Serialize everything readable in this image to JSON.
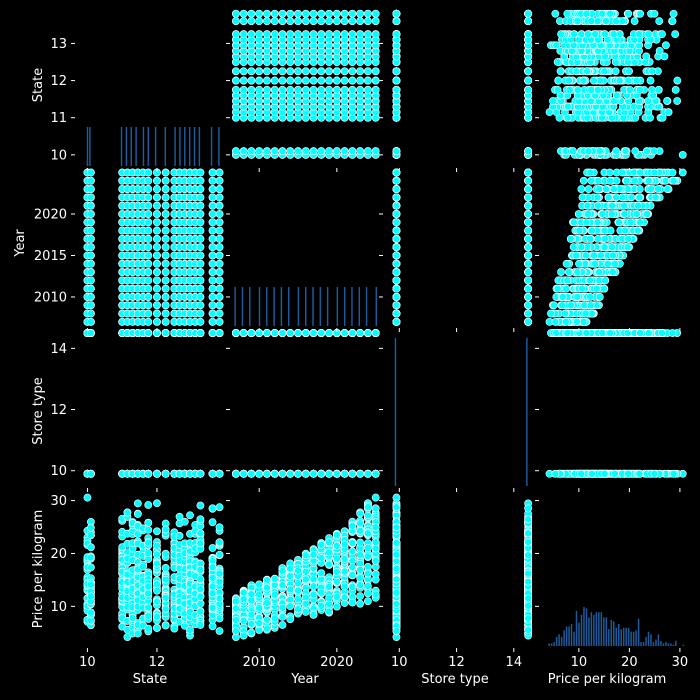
{
  "chart_data": {
    "type": "scatter",
    "kind": "pairplot",
    "variables": [
      "State",
      "Year",
      "Store type",
      "Price per kilogram"
    ],
    "axes": {
      "State": {
        "range": [
          9.7,
          13.9
        ],
        "ticks": [
          10,
          11,
          12,
          13
        ],
        "x_ticks": [
          10,
          12
        ]
      },
      "Year": {
        "range": [
          2006.5,
          2025.3
        ],
        "ticks": [
          2010,
          2015,
          2020
        ],
        "x_ticks": [
          2010,
          2020
        ]
      },
      "Store type": {
        "range": [
          9.5,
          14.6
        ],
        "ticks": [
          10,
          12,
          14
        ],
        "x_ticks": [
          10,
          12,
          14
        ]
      },
      "Price per kilogram": {
        "range": [
          2.5,
          32
        ],
        "ticks": [
          10,
          20,
          30
        ],
        "x_ticks": [
          10,
          20,
          30
        ]
      }
    },
    "state_levels": [
      10,
      10.1,
      11.0,
      11.15,
      11.3,
      11.45,
      11.6,
      11.75,
      12.0,
      12.25,
      12.5,
      12.65,
      12.8,
      12.95,
      13.1,
      13.25,
      13.6,
      13.8
    ],
    "store_levels": [
      9.9,
      14.5
    ],
    "price_range_by_year": {
      "2007": [
        4,
        12
      ],
      "2010": [
        5,
        15
      ],
      "2015": [
        7,
        19
      ],
      "2020": [
        9,
        24
      ],
      "2025": [
        11,
        31
      ]
    },
    "marker_color": "#00ffff",
    "marker_edge": "#ffffff",
    "hist_color": "#1f5a9c",
    "background": "#000000",
    "grid": false,
    "legend": "none"
  }
}
